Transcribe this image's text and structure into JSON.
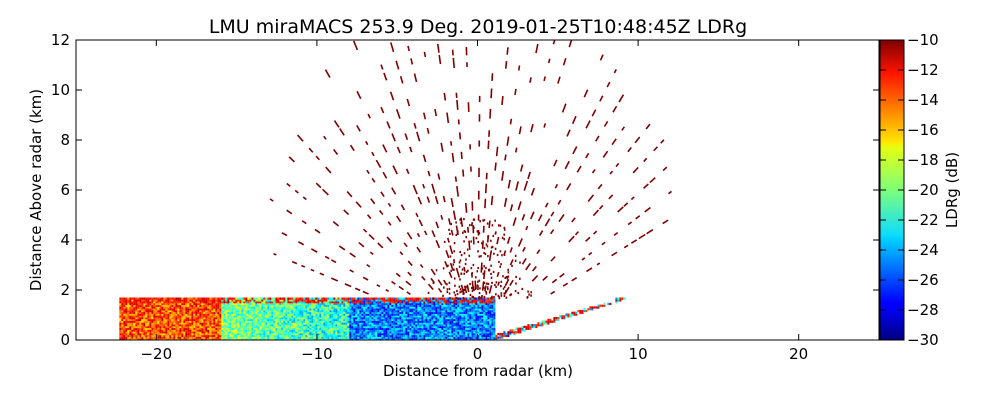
{
  "chart_data": {
    "type": "heatmap",
    "title": "LMU miraMACS 253.9 Deg. 2019-01-25T10:48:45Z  LDRg",
    "xlabel": "Distance from radar (km)",
    "ylabel": "Distance Above radar  (km)",
    "xlim": [
      -25,
      25
    ],
    "ylim": [
      0,
      12
    ],
    "xticks": [
      -20,
      -10,
      0,
      10,
      20
    ],
    "xtick_labels": [
      "−20",
      "−10",
      "0",
      "10",
      "20"
    ],
    "yticks": [
      0,
      2,
      4,
      6,
      8,
      10,
      12
    ],
    "ytick_labels": [
      "0",
      "2",
      "4",
      "6",
      "8",
      "10",
      "12"
    ],
    "grid": false,
    "colorbar": {
      "label": "LDRg (dB)",
      "range": [
        -30,
        -10
      ],
      "colormap": "jet",
      "ticks": [
        -10,
        -12,
        -14,
        -16,
        -18,
        -20,
        -22,
        -24,
        -26,
        -28,
        -30
      ],
      "tick_labels": [
        "−10",
        "−12",
        "−14",
        "−16",
        "−18",
        "−20",
        "−22",
        "−24",
        "−26",
        "−28",
        "−30"
      ]
    },
    "scan": {
      "radar_x_km": 0,
      "sector_deg": [
        20,
        170
      ],
      "near_surface_band_km": [
        0,
        1.7
      ],
      "near_surface_ldr_db": {
        "left_far": -14,
        "left_mid": -20,
        "center": -25,
        "right": -23
      },
      "upper_ldr_db": -10
    }
  }
}
